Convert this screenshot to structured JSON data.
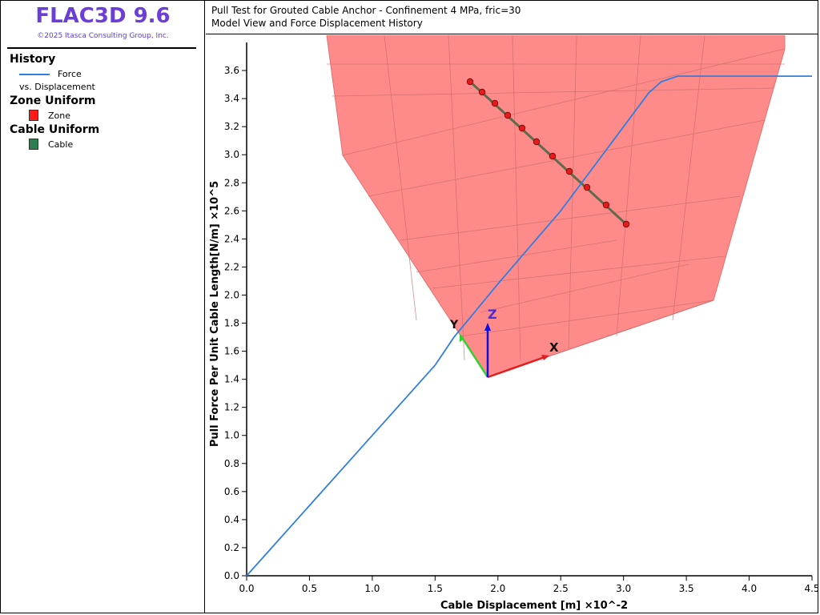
{
  "app": {
    "name": "FLAC3D 9.6",
    "copyright": "©2025 Itasca Consulting Group, Inc."
  },
  "legend": {
    "history_heading": "History",
    "history_series": "Force",
    "history_sub": "vs. Displacement",
    "zone_heading": "Zone Uniform",
    "zone_label": "Zone",
    "cable_heading": "Cable Uniform",
    "cable_label": "Cable",
    "colors": {
      "force": "#2f7fe0",
      "zone": "#ff1a1a",
      "cable": "#2e7d4f"
    }
  },
  "plot": {
    "title_line1": "Pull Test for Grouted Cable Anchor - Confinement 4 MPa, fric=30",
    "title_line2": "Model View and Force Displacement History"
  },
  "axes_gizmo": {
    "x": "X",
    "y": "Y",
    "z": "Z"
  },
  "chart_data": {
    "type": "line",
    "xlabel": "Cable Displacement [m]  ×10^-2",
    "ylabel": "Pull Force Per Unit Cable Length[N/m]  ×10^5",
    "xlim": [
      0,
      4.5
    ],
    "ylim": [
      0,
      3.8
    ],
    "x_ticks": [
      "0.0",
      "0.5",
      "1.0",
      "1.5",
      "2.0",
      "2.5",
      "3.0",
      "3.5",
      "4.0",
      "4.5"
    ],
    "y_ticks": [
      "0.0",
      "0.2",
      "0.4",
      "0.6",
      "0.8",
      "1.0",
      "1.2",
      "1.4",
      "1.6",
      "1.8",
      "2.0",
      "2.2",
      "2.4",
      "2.6",
      "2.8",
      "3.0",
      "3.2",
      "3.4",
      "3.6"
    ],
    "grid": false,
    "series": [
      {
        "name": "Force",
        "color": "#2f7fe0",
        "x": [
          0,
          0.5,
          1.0,
          1.5,
          1.65,
          2.0,
          2.5,
          3.0,
          3.2,
          3.3,
          3.43,
          4.0,
          4.5
        ],
        "y": [
          0,
          0.5,
          1.0,
          1.5,
          1.7,
          2.08,
          2.6,
          3.2,
          3.44,
          3.52,
          3.56,
          3.56,
          3.56
        ]
      }
    ]
  }
}
